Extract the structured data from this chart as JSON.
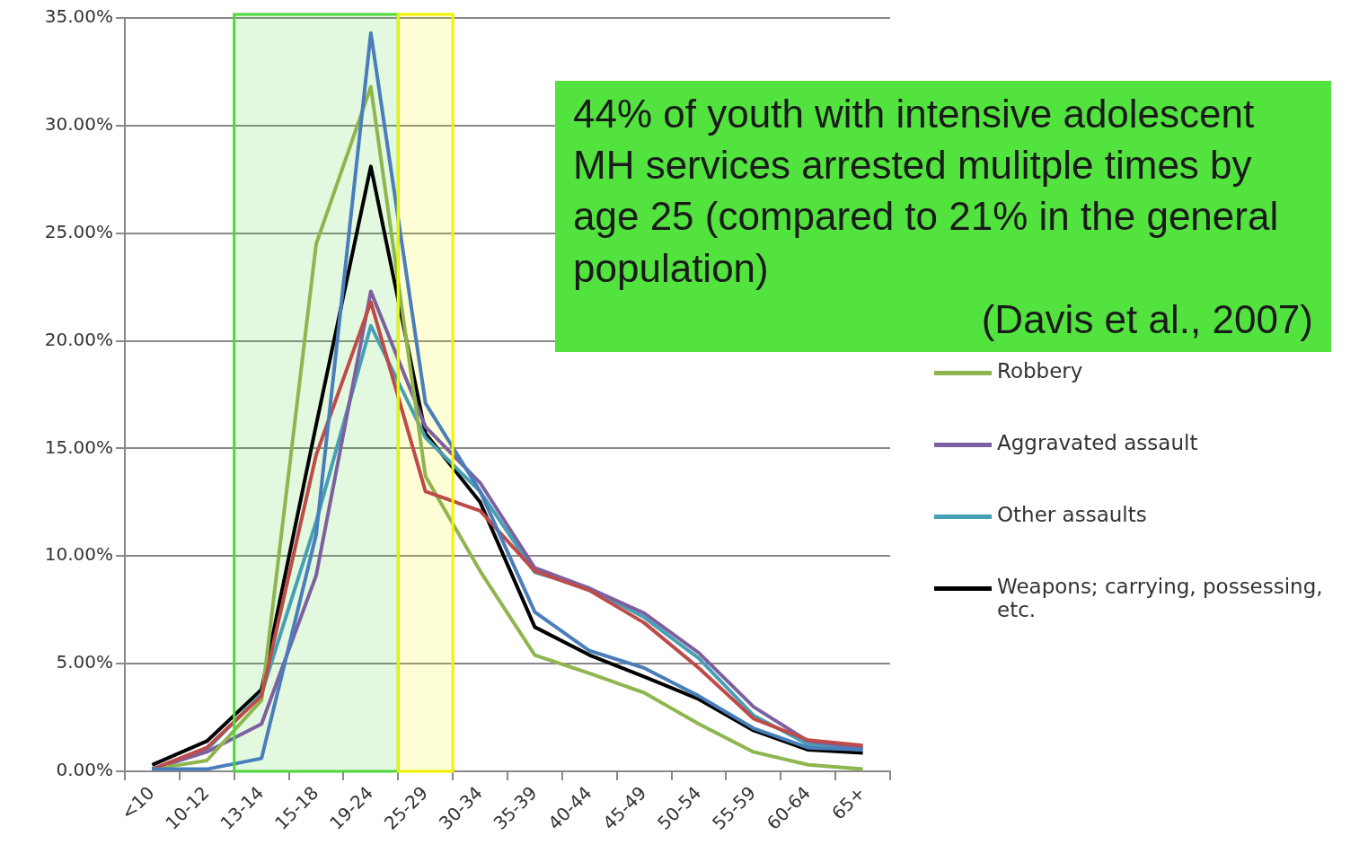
{
  "chart_data": {
    "type": "line",
    "categories": [
      "<10",
      "10-12",
      "13-14",
      "15-18",
      "19-24",
      "25-29",
      "30-34",
      "35-39",
      "40-44",
      "45-49",
      "50-54",
      "55-59",
      "60-64",
      "65+"
    ],
    "series": [
      {
        "color": "#4a7ebb",
        "values": [
          0.1,
          0.1,
          0.6,
          11.0,
          34.3,
          17.1,
          13.0,
          7.4,
          5.6,
          4.8,
          3.5,
          2.0,
          1.1,
          1.0
        ]
      },
      {
        "color": "#be4b48",
        "values": [
          0.1,
          1.1,
          3.5,
          14.7,
          21.8,
          13.0,
          12.1,
          9.3,
          8.4,
          6.9,
          4.8,
          2.45,
          1.45,
          1.2
        ]
      },
      {
        "name": "Robbery",
        "color": "#8fb54e",
        "values": [
          0.1,
          0.5,
          3.3,
          24.5,
          31.8,
          13.7,
          9.3,
          5.4,
          4.55,
          3.65,
          2.2,
          0.9,
          0.3,
          0.1
        ]
      },
      {
        "name": "Aggravated assault",
        "color": "#7d60a0",
        "values": [
          0.1,
          0.9,
          2.2,
          9.1,
          22.3,
          16.0,
          13.4,
          9.45,
          8.5,
          7.35,
          5.5,
          3.0,
          1.4,
          1.1
        ]
      },
      {
        "name": "Other assaults",
        "color": "#46a0b5",
        "values": [
          0.1,
          1.0,
          3.6,
          11.6,
          20.7,
          15.5,
          13.0,
          9.25,
          8.5,
          7.15,
          5.25,
          2.6,
          1.25,
          1.05
        ]
      },
      {
        "name": "Weapons; carrying, possessing, etc.",
        "color": "#000000",
        "values": [
          0.3,
          1.4,
          3.8,
          16.1,
          28.1,
          15.7,
          12.5,
          6.7,
          5.4,
          4.4,
          3.35,
          1.9,
          1.0,
          0.85
        ]
      }
    ],
    "ylim": [
      0,
      35
    ],
    "yticks": [
      {
        "value": 0,
        "label": "0.00%"
      },
      {
        "value": 5,
        "label": "5.00%"
      },
      {
        "value": 10,
        "label": "10.00%"
      },
      {
        "value": 15,
        "label": "15.00%"
      },
      {
        "value": 20,
        "label": "20.00%"
      },
      {
        "value": 25,
        "label": "25.00%"
      },
      {
        "value": 30,
        "label": "30.00%"
      },
      {
        "value": 35,
        "label": "35.00%"
      }
    ],
    "grid": "y",
    "legend": "right",
    "marker": "none",
    "line_style": "solid",
    "bands": [
      {
        "axis": "x",
        "from": "13-14",
        "to": "19-24",
        "color": "#4cd83a"
      },
      {
        "axis": "x",
        "from": "25-29",
        "to": "25-29",
        "color": "#f2f200"
      }
    ],
    "annotations": [
      "44% of youth with intensive adolescent MH services arrested mulitple times by age 25 (compared to 21% in the general population)",
      "(Davis et al., 2007)"
    ]
  }
}
